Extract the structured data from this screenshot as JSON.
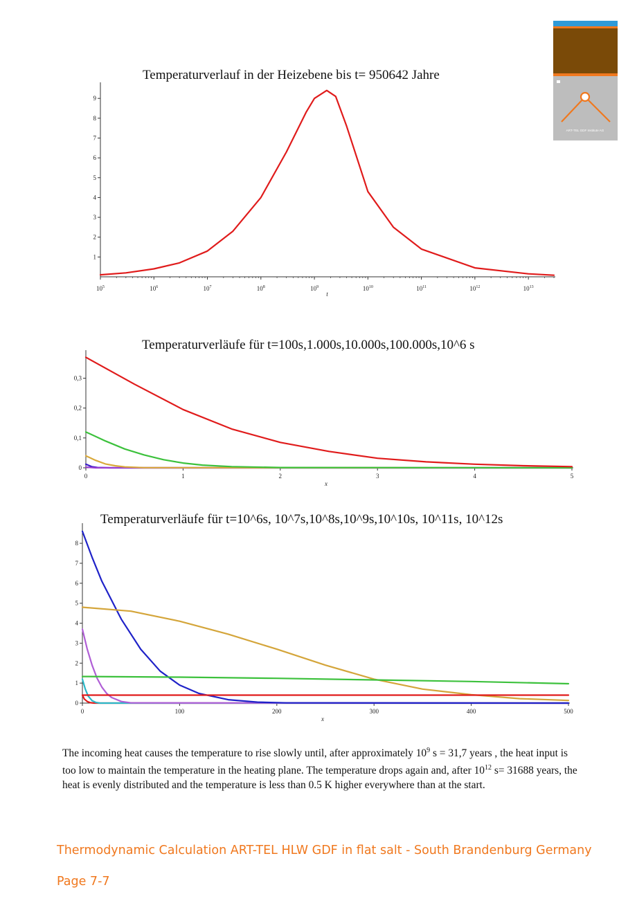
{
  "colors": {
    "accent": "#f0781e",
    "logo_brown": "#7a4a08",
    "logo_blue": "#2f9ad8",
    "logo_gray": "#bdbdbd"
  },
  "logo": {
    "caption": "ART-TEL GDF Institute AG",
    "icon": "tent-apex-icon"
  },
  "chart_data": [
    {
      "type": "line",
      "title": "Temperaturverlauf in der Heizebene bis t= 950642 Jahre",
      "xlabel": "t",
      "x_scale": "log",
      "xlim": [
        100000,
        30000000000000
      ],
      "ylim": [
        0,
        9.6
      ],
      "x_tick_exponents": [
        5,
        6,
        7,
        8,
        9,
        10,
        11,
        12,
        13
      ],
      "y_ticks": [
        "1",
        "2",
        "3",
        "4",
        "5",
        "6",
        "7",
        "8",
        "9"
      ],
      "y_tick_values": [
        1,
        2,
        3,
        4,
        5,
        6,
        7,
        8,
        9
      ],
      "series": [
        {
          "color": "#e01b1b",
          "x": [
            100000,
            300000,
            1000000,
            3000000,
            10000000,
            30000000,
            100000000,
            300000000,
            700000000,
            1000000000,
            1700000000,
            2500000000,
            4000000000,
            10000000000,
            30000000000,
            100000000000,
            1000000000000,
            10000000000000,
            30000000000000
          ],
          "y": [
            0.1,
            0.2,
            0.4,
            0.7,
            1.3,
            2.3,
            4.0,
            6.3,
            8.3,
            9.0,
            9.4,
            9.1,
            7.6,
            4.3,
            2.5,
            1.4,
            0.45,
            0.15,
            0.08
          ]
        }
      ]
    },
    {
      "type": "line",
      "title": "Temperaturverläufe für t=100s,1.000s,10.000s,100.000s,10^6 s",
      "xlabel": "x",
      "xlim": [
        0,
        5
      ],
      "ylim": [
        0,
        0.38
      ],
      "x_ticks": [
        "0",
        "1",
        "2",
        "3",
        "4",
        "5"
      ],
      "x_tick_values": [
        0,
        1,
        2,
        3,
        4,
        5
      ],
      "y_ticks": [
        "0",
        "0,1",
        "0,2",
        "0,3"
      ],
      "y_tick_values": [
        0,
        0.1,
        0.2,
        0.3
      ],
      "series": [
        {
          "color": "#3a1ec8",
          "x": [
            0,
            0.06,
            0.12,
            0.25,
            5
          ],
          "y": [
            0.012,
            0.004,
            0.001,
            0,
            0
          ]
        },
        {
          "color": "#9a3fd0",
          "x": [
            0,
            0.1,
            5
          ],
          "y": [
            0.002,
            0,
            0
          ]
        },
        {
          "color": "#d9a93a",
          "x": [
            0,
            0.1,
            0.2,
            0.3,
            0.4,
            0.6,
            5
          ],
          "y": [
            0.04,
            0.025,
            0.013,
            0.007,
            0.003,
            0.0005,
            0
          ]
        },
        {
          "color": "#3cc13c",
          "x": [
            0,
            0.2,
            0.4,
            0.6,
            0.8,
            1.0,
            1.2,
            1.5,
            2.0,
            5
          ],
          "y": [
            0.12,
            0.09,
            0.063,
            0.043,
            0.027,
            0.016,
            0.009,
            0.004,
            0.001,
            0
          ]
        },
        {
          "color": "#e01b1b",
          "x": [
            0,
            0.5,
            1,
            1.5,
            2,
            2.5,
            3,
            3.5,
            4,
            4.5,
            5
          ],
          "y": [
            0.37,
            0.28,
            0.195,
            0.13,
            0.085,
            0.055,
            0.032,
            0.02,
            0.012,
            0.007,
            0.004
          ]
        }
      ]
    },
    {
      "type": "line",
      "title": "Temperaturverläufe für t=10^6s, 10^7s,10^8s,10^9s,10^10s, 10^11s, 10^12s",
      "xlabel": "x",
      "xlim": [
        0,
        500
      ],
      "ylim": [
        0,
        8.8
      ],
      "x_ticks": [
        "0",
        "100",
        "200",
        "300",
        "400",
        "500"
      ],
      "x_tick_values": [
        0,
        100,
        200,
        300,
        400,
        500
      ],
      "y_ticks": [
        "0",
        "1",
        "2",
        "3",
        "4",
        "5",
        "6",
        "7",
        "8"
      ],
      "y_tick_values": [
        0,
        1,
        2,
        3,
        4,
        5,
        6,
        7,
        8
      ],
      "series": [
        {
          "color": "#e01b1b",
          "x": [
            0,
            2,
            5,
            8,
            12,
            500
          ],
          "y": [
            0.4,
            0.2,
            0.08,
            0.02,
            0,
            0
          ]
        },
        {
          "color": "#2ab8c8",
          "x": [
            0,
            3,
            6,
            10,
            14,
            18,
            500
          ],
          "y": [
            1.2,
            0.7,
            0.35,
            0.12,
            0.03,
            0,
            0
          ]
        },
        {
          "color": "#b05ed6",
          "x": [
            0,
            5,
            10,
            15,
            20,
            25,
            30,
            40,
            50,
            500
          ],
          "y": [
            3.7,
            2.7,
            1.9,
            1.25,
            0.8,
            0.48,
            0.28,
            0.08,
            0.01,
            0
          ]
        },
        {
          "color": "#1f22c8",
          "x": [
            0,
            10,
            20,
            40,
            60,
            80,
            100,
            120,
            150,
            180,
            210,
            500
          ],
          "y": [
            8.6,
            7.3,
            6.1,
            4.2,
            2.7,
            1.6,
            0.9,
            0.48,
            0.17,
            0.05,
            0.01,
            0
          ]
        },
        {
          "color": "#d4a53a",
          "x": [
            0,
            50,
            100,
            150,
            200,
            250,
            300,
            350,
            400,
            450,
            500
          ],
          "y": [
            4.8,
            4.6,
            4.1,
            3.45,
            2.7,
            1.9,
            1.2,
            0.7,
            0.42,
            0.22,
            0.13
          ]
        },
        {
          "color": "#3cc13c",
          "x": [
            0,
            100,
            200,
            300,
            400,
            500
          ],
          "y": [
            1.33,
            1.3,
            1.24,
            1.16,
            1.08,
            0.97
          ]
        },
        {
          "color": "#e01b1b",
          "x": [
            0,
            500
          ],
          "y": [
            0.4,
            0.4
          ]
        }
      ]
    }
  ],
  "paragraph": {
    "seg1": "The incoming heat causes the temperature to rise slowly until, after approximately 10",
    "sup1": "9",
    "seg2": " s = 31,7 years , the heat input is too low to maintain the temperature in the heating plane. The temperature drops again and, after 10",
    "sup2": "12",
    "seg3": " s= 31688 years, the heat is evenly distributed and the temperature is less than 0.5 K higher everywhere than at the start."
  },
  "footer": {
    "title": "Thermodynamic Calculation ART-TEL HLW  GDF in flat salt - South Brandenburg Germany",
    "page": "Page 7-7"
  }
}
